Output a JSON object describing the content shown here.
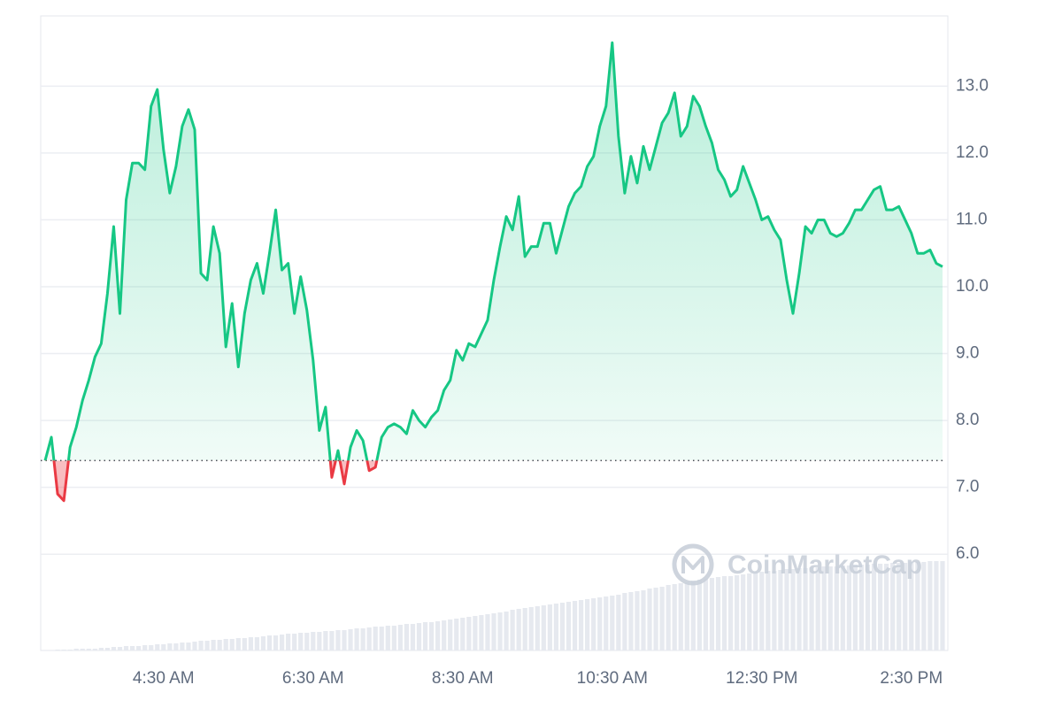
{
  "chart_data": {
    "type": "line",
    "watermark": "CoinMarketCap",
    "categories": [
      null,
      null,
      null,
      null,
      null,
      null,
      null,
      null,
      null,
      null,
      null,
      null,
      null,
      null,
      null,
      null,
      null,
      null,
      null,
      "4:30 AM",
      null,
      null,
      null,
      null,
      null,
      null,
      null,
      null,
      null,
      null,
      null,
      null,
      null,
      null,
      null,
      null,
      null,
      null,
      null,
      null,
      null,
      null,
      null,
      "6:30 AM",
      null,
      null,
      null,
      null,
      null,
      null,
      null,
      null,
      null,
      null,
      null,
      null,
      null,
      null,
      null,
      null,
      null,
      null,
      null,
      null,
      null,
      null,
      null,
      "8:30 AM",
      null,
      null,
      null,
      null,
      null,
      null,
      null,
      null,
      null,
      null,
      null,
      null,
      null,
      null,
      null,
      null,
      null,
      null,
      null,
      null,
      null,
      null,
      null,
      "10:30 AM",
      null,
      null,
      null,
      null,
      null,
      null,
      null,
      null,
      null,
      null,
      null,
      null,
      null,
      null,
      null,
      null,
      null,
      null,
      null,
      null,
      null,
      null,
      null,
      "12:30 PM",
      null,
      null,
      null,
      null,
      null,
      null,
      null,
      null,
      null,
      null,
      null,
      null,
      null,
      null,
      null,
      null,
      null,
      null,
      null,
      null,
      null,
      null,
      null,
      "2:30 PM",
      null,
      null,
      null,
      null,
      null
    ],
    "values": [
      7.4,
      7.75,
      6.9,
      6.8,
      7.6,
      7.9,
      8.3,
      8.6,
      8.95,
      9.15,
      9.9,
      10.9,
      9.6,
      11.3,
      11.85,
      11.85,
      11.75,
      12.7,
      12.95,
      12.05,
      11.4,
      11.8,
      12.4,
      12.65,
      12.35,
      10.2,
      10.1,
      10.9,
      10.5,
      9.1,
      9.75,
      8.8,
      9.6,
      10.1,
      10.35,
      9.9,
      10.5,
      11.15,
      10.25,
      10.35,
      9.6,
      10.15,
      9.65,
      8.9,
      7.85,
      8.2,
      7.15,
      7.55,
      7.05,
      7.6,
      7.85,
      7.7,
      7.25,
      7.3,
      7.75,
      7.9,
      7.95,
      7.9,
      7.8,
      8.15,
      8.0,
      7.9,
      8.05,
      8.15,
      8.45,
      8.6,
      9.05,
      8.9,
      9.15,
      9.1,
      9.3,
      9.5,
      10.1,
      10.6,
      11.05,
      10.85,
      11.35,
      10.45,
      10.6,
      10.6,
      10.95,
      10.95,
      10.5,
      10.85,
      11.2,
      11.4,
      11.5,
      11.8,
      11.95,
      12.4,
      12.7,
      13.65,
      12.25,
      11.4,
      11.95,
      11.55,
      12.1,
      11.75,
      12.1,
      12.45,
      12.6,
      12.9,
      12.25,
      12.4,
      12.85,
      12.7,
      12.4,
      12.15,
      11.75,
      11.6,
      11.35,
      11.45,
      11.8,
      11.55,
      11.3,
      11.0,
      11.05,
      10.85,
      10.7,
      10.1,
      9.6,
      10.2,
      10.9,
      10.8,
      11.0,
      11.0,
      10.8,
      10.75,
      10.8,
      10.95,
      11.15,
      11.15,
      11.3,
      11.45,
      11.5,
      11.15,
      11.15,
      11.2,
      11.0,
      10.8,
      10.5,
      10.5,
      10.55,
      10.35,
      10.3
    ],
    "baseline": 7.4,
    "up_color": "#16c784",
    "down_color": "#ea3943",
    "volume": {
      "color": "#e6e9ef",
      "y2lim": [
        0,
        110
      ],
      "values": [
        0,
        0,
        1,
        1,
        1,
        2,
        2,
        2,
        2,
        3,
        3,
        4,
        4,
        5,
        5,
        5,
        6,
        6,
        7,
        7,
        8,
        8,
        9,
        9,
        10,
        11,
        11,
        12,
        12,
        13,
        13,
        14,
        14,
        15,
        15,
        16,
        17,
        17,
        18,
        19,
        19,
        20,
        20,
        21,
        21,
        22,
        22,
        23,
        23,
        24,
        25,
        25,
        26,
        27,
        27,
        28,
        28,
        29,
        30,
        30,
        31,
        32,
        32,
        33,
        34,
        35,
        36,
        37,
        38,
        39,
        40,
        41,
        42,
        43,
        44,
        46,
        47,
        48,
        49,
        50,
        51,
        52,
        53,
        54,
        55,
        56,
        57,
        58,
        59,
        60,
        61,
        62,
        63,
        65,
        66,
        67,
        68,
        70,
        71,
        72,
        74,
        75,
        76,
        77,
        79,
        80,
        81,
        82,
        83,
        84,
        84,
        85,
        86,
        87,
        88,
        89,
        90,
        90,
        91,
        92,
        92,
        93,
        93,
        94,
        94,
        95,
        95,
        95,
        96,
        96,
        97,
        97,
        97,
        98,
        98,
        98,
        99,
        99,
        99,
        100,
        100,
        100,
        101,
        101,
        101
      ]
    },
    "ylim": [
      4.56,
      14.05
    ],
    "yticks": [
      {
        "value": 6,
        "label": "6.0"
      },
      {
        "value": 7,
        "label": "7.0"
      },
      {
        "value": 8,
        "label": "8.0"
      },
      {
        "value": 9,
        "label": "9.0"
      },
      {
        "value": 10,
        "label": "10.0"
      },
      {
        "value": 11,
        "label": "11.0"
      },
      {
        "value": 12,
        "label": "12.0"
      },
      {
        "value": 13,
        "label": "13.0"
      }
    ],
    "grid": true
  }
}
